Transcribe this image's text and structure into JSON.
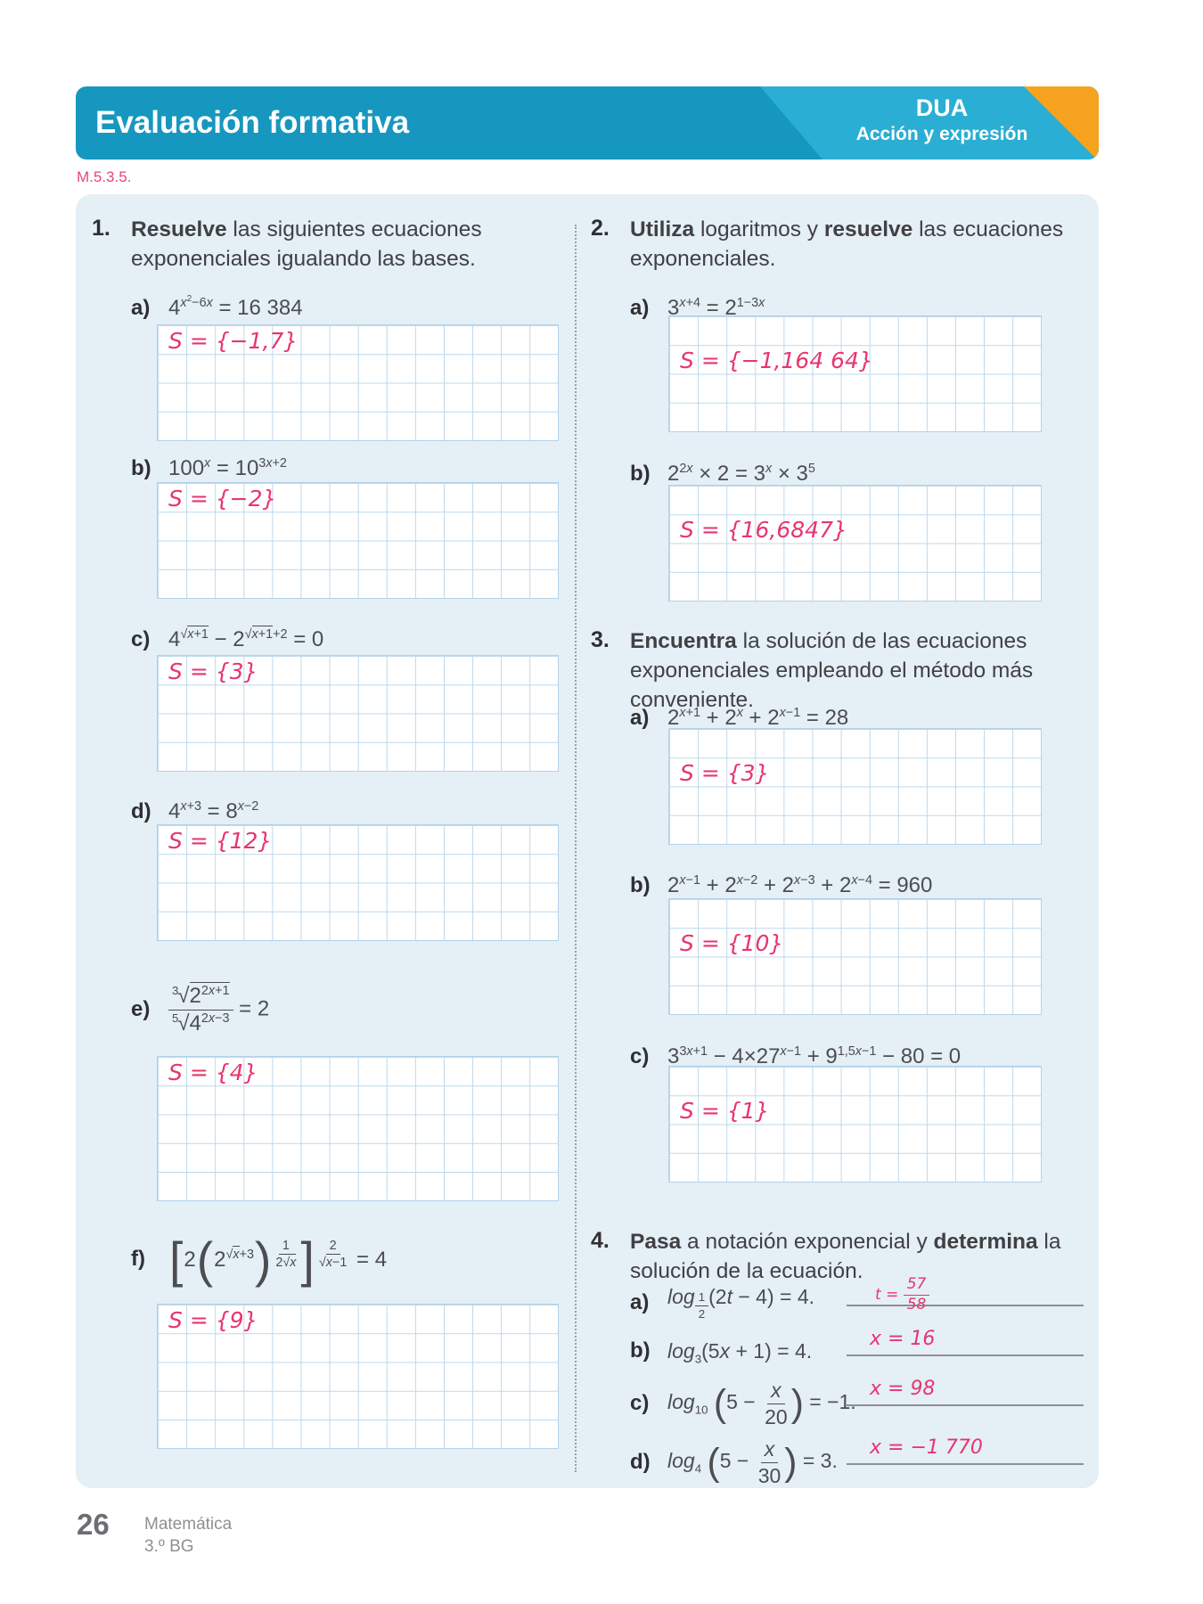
{
  "header": {
    "title": "Evaluación formativa",
    "badge_title": "DUA",
    "badge_subtitle": "Acción y expresión",
    "standard_code": "M.5.3.5.",
    "colors": {
      "banner_teal": "#1697bf",
      "banner_light_teal": "#2aaed3",
      "corner_orange": "#f6a31f",
      "code_pink": "#e8457e",
      "card_background": "#e4eff6",
      "grid_line_blue": "#bdd8ec",
      "handwriting_pink": "#e73570"
    }
  },
  "exercises": [
    {
      "number": "1.",
      "prompt": "<b>Resuelve</b> las siguientes ecuaciones exponenciales igualando las bases.",
      "items": [
        {
          "label": "a)",
          "eq": "4<sup><i>x</i><sup>2</sup>−6<i>x</i></sup> = 16 384",
          "ans": "S = {−1,7}"
        },
        {
          "label": "b)",
          "eq": "100<sup><i>x</i></sup> = 10<sup>3<i>x</i>+2</sup>",
          "ans": "S = {−2}"
        },
        {
          "label": "c)",
          "eq": "4<sup>√<span class='ov'><i>x</i>+1</span></sup> − 2<sup>√<span class='ov'><i>x</i>+1</span>+2</sup> = 0",
          "ans": "S = {3}"
        },
        {
          "label": "d)",
          "eq": "4<sup><i>x</i>+3</sup> = 8<sup><i>x</i>−2</sup>",
          "ans": "S = {12}"
        },
        {
          "label": "e)",
          "eq": "<span class='fr'><span class='nu'><span class='ridx'>3</span>√<span class='ov'>2<sup>2<i>x</i>+1</sup></span></span><span class='de'><span class='ridx'>5</span>√<span class='ov'>4<sup>2<i>x</i>−3</sup></span></span></span> = 2",
          "ans": "S = {4}"
        },
        {
          "label": "f)",
          "eq": "<span class='big'>[</span>2<span class='big'>(</span>2<sup>√<span class='ov'><i>x</i></span>+3</sup><span class='big'>)</span><sup><span class='fr'><span class='nu'>1</span><span class='de'>2√<span class='ov'><i>x</i></span></span></span></sup><span class='big'>]</span><sup><span class='fr'><span class='nu'>2</span><span class='de'>√<span class='ov'><i>x</i></span>−1</span></span></sup> = 4",
          "ans": "S = {9}"
        }
      ]
    },
    {
      "number": "2.",
      "prompt": "<b>Utiliza</b> logaritmos y <b>resuelve</b> las ecuaciones exponenciales.",
      "items": [
        {
          "label": "a)",
          "eq": "3<sup><i>x</i>+4</sup> = 2<sup>1−3<i>x</i></sup>",
          "ans": "S = {−1,164 64}"
        },
        {
          "label": "b)",
          "eq": "2<sup>2<i>x</i></sup> × 2 = 3<sup><i>x</i></sup> × 3<sup>5</sup>",
          "ans": "S = {16,6847}"
        }
      ]
    },
    {
      "number": "3.",
      "prompt": "<b>Encuentra</b> la solución de las ecuaciones exponenciales empleando el método más conveniente.",
      "items": [
        {
          "label": "a)",
          "eq": "2<sup><i>x</i>+1</sup> + 2<sup><i>x</i></sup> + 2<sup><i>x</i>−1</sup> = 28",
          "ans": "S = {3}"
        },
        {
          "label": "b)",
          "eq": "2<sup><i>x</i>−1</sup> + 2<sup><i>x</i>−2</sup> + 2<sup><i>x</i>−3</sup> + 2<sup><i>x</i>−4</sup> = 960",
          "ans": "S = {10}"
        },
        {
          "label": "c)",
          "eq": "3<sup>3<i>x</i>+1</sup> − 4×27<sup><i>x</i>−1</sup> + 9<sup>1,5<i>x</i>−1</sup> − 80 = 0",
          "ans": "S = {1}"
        }
      ]
    },
    {
      "number": "4.",
      "prompt": "<b>Pasa</b> a notación exponencial y <b>determina</b> la solución de la ecuación.",
      "items": [
        {
          "label": "a)",
          "eq": "<i>log</i><sub><span class='fr'><span class='nu'>1</span><span class='de'>2</span></span></sub>(2<i>t</i> − 4) = 4.",
          "ans": "<i>t</i> = <span class='fr'><span class='nu'>57</span><span class='de'>58</span></span>"
        },
        {
          "label": "b)",
          "eq": "<i>log</i><sub>3</sub>(5<i>x</i> + 1) = 4.",
          "ans": "x = 16"
        },
        {
          "label": "c)",
          "eq": "<i>log</i><sub>10</sub> <span class='big2'>(</span>5 − <span class='fr'><span class='nu'><i>x</i></span><span class='de'>20</span></span><span class='big2'>)</span> = −1.",
          "ans": "x = 98"
        },
        {
          "label": "d)",
          "eq": "<i>log</i><sub>4</sub> <span class='big2'>(</span>5 − <span class='fr'><span class='nu'><i>x</i></span><span class='de'>30</span></span><span class='big2'>)</span> = 3.",
          "ans": "x = −1 770"
        }
      ]
    }
  ],
  "footer": {
    "page_number": "26",
    "subject": "Matemática",
    "grade": "3.º BG"
  }
}
